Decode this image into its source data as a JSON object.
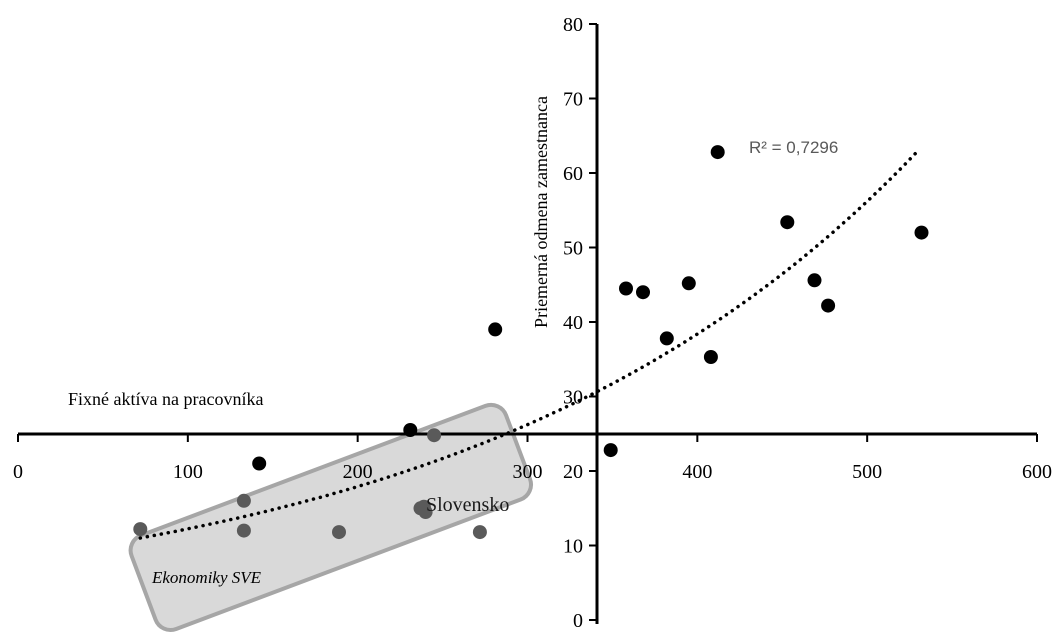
{
  "chart_data": {
    "type": "scatter",
    "xlabel": "Fixné aktíva na pracovníka",
    "ylabel": "Priemerná odmena zamestnanca",
    "xlim": [
      0,
      600
    ],
    "ylim": [
      0,
      80
    ],
    "x_ticks": [
      "0",
      "100",
      "200",
      "300",
      "400",
      "500",
      "600"
    ],
    "y_ticks": [
      "0",
      "10",
      "20",
      "30",
      "40",
      "50",
      "60",
      "70",
      "80"
    ],
    "grid": false,
    "legend": "none",
    "colors": {
      "default": "#000000",
      "group": "#5a5a5a",
      "trendline": "#000000",
      "box_fill": "#d9d9d9",
      "box_stroke": "#a6a6a6",
      "r2_text": "#595959"
    },
    "points": [
      {
        "x": 72,
        "y": 12.2,
        "group": true
      },
      {
        "x": 133,
        "y": 16.0,
        "group": true
      },
      {
        "x": 133,
        "y": 12.0,
        "group": true
      },
      {
        "x": 142,
        "y": 21.0,
        "group": false
      },
      {
        "x": 189,
        "y": 11.8,
        "group": true
      },
      {
        "x": 231,
        "y": 25.5,
        "group": false
      },
      {
        "x": 237,
        "y": 15.0,
        "group": true
      },
      {
        "x": 239,
        "y": 15.2,
        "group": true
      },
      {
        "x": 240,
        "y": 14.5,
        "group": true
      },
      {
        "x": 245,
        "y": 24.8,
        "group": true
      },
      {
        "x": 272,
        "y": 11.8,
        "group": true
      },
      {
        "x": 281,
        "y": 39.0,
        "group": false
      },
      {
        "x": 349,
        "y": 22.8,
        "group": false
      },
      {
        "x": 358,
        "y": 44.5,
        "group": false
      },
      {
        "x": 368,
        "y": 44.0,
        "group": false
      },
      {
        "x": 382,
        "y": 37.8,
        "group": false
      },
      {
        "x": 395,
        "y": 45.2,
        "group": false
      },
      {
        "x": 408,
        "y": 35.3,
        "group": false
      },
      {
        "x": 412,
        "y": 62.8,
        "group": false
      },
      {
        "x": 453,
        "y": 53.4,
        "group": false
      },
      {
        "x": 469,
        "y": 45.6,
        "group": false
      },
      {
        "x": 477,
        "y": 42.2,
        "group": false
      },
      {
        "x": 532,
        "y": 52.0,
        "group": false
      }
    ],
    "trendline": {
      "type": "exponential",
      "r2_label": "R² = 0,7296",
      "x_from": 72,
      "x_to": 530,
      "y_from": 11,
      "y_to": 63
    },
    "annotations": {
      "point_label": "Slovensko",
      "group_label": "Ekonomiky SVE"
    }
  }
}
